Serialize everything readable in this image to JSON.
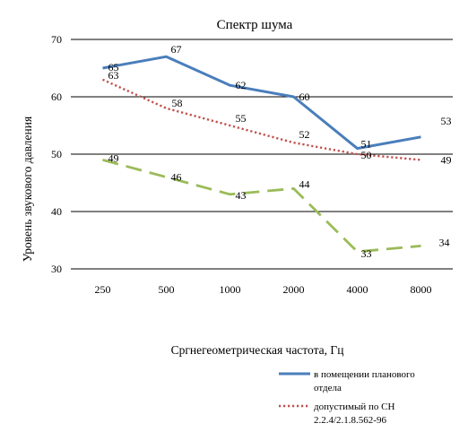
{
  "chart_data": {
    "type": "line",
    "title": "Спектр шума",
    "xlabel": "Сргнегеометрическая частота, Гц",
    "ylabel": "Уровень звукового давления",
    "categories": [
      "250",
      "500",
      "1000",
      "2000",
      "4000",
      "8000"
    ],
    "ylim": [
      30,
      70
    ],
    "yticks": [
      "30",
      "40",
      "50",
      "60",
      "70"
    ],
    "grid": "horizontal",
    "legend_position": "bottom-right",
    "series": [
      {
        "name": "в помещении планового отдела",
        "name_lines": [
          "в помещении планового",
          "отдела"
        ],
        "values": [
          65,
          67,
          62,
          60,
          51,
          53
        ],
        "labels": [
          "65",
          "67",
          "62",
          "60",
          "51",
          "53"
        ],
        "color": "#4a7ebb",
        "style": "solid"
      },
      {
        "name": "допустимый по СН 2.2.4/2.1.8.562-96",
        "name_lines": [
          "допустимый по СН",
          "2.2.4/2.1.8.562-96"
        ],
        "values": [
          63,
          58,
          55,
          52,
          50,
          49
        ],
        "labels": [
          "63",
          "58",
          "55",
          "52",
          "50",
          "49"
        ],
        "color": "#c0504d",
        "style": "dotted"
      },
      {
        "name": "",
        "values": [
          49,
          46,
          43,
          44,
          33,
          34
        ],
        "labels": [
          "49",
          "46",
          "43",
          "44",
          "33",
          "34"
        ],
        "color": "#9bbb59",
        "style": "dashed"
      }
    ]
  }
}
